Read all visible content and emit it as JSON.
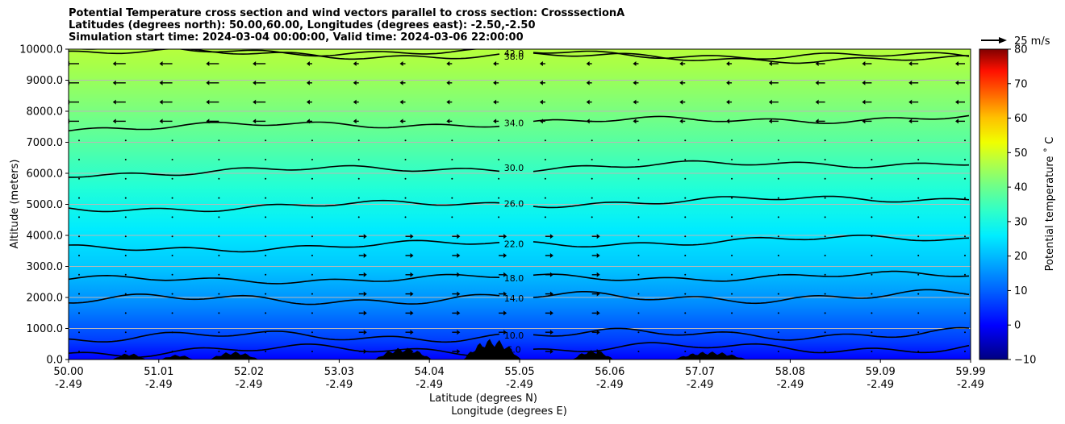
{
  "title_lines": [
    "Potential Temperature cross section and wind vectors parallel to cross section: CrosssectionA",
    "Latitudes (degrees north): 50.00,60.00, Longitudes (degrees east): -2.50,-2.50",
    "Simulation start time: 2024-03-04 00:00:00, Valid time: 2024-03-06 22:00:00"
  ],
  "chart_data": {
    "type": "contour",
    "title": "Potential Temperature cross section and wind vectors parallel to cross section: CrosssectionA",
    "ylabel": "Altitude (meters)",
    "xlabel_lines": [
      "Latitude (degrees N)",
      "Longitude (degrees E)"
    ],
    "ylim": [
      0,
      10000
    ],
    "y_ticks": [
      "0.0",
      "1000.0",
      "2000.0",
      "3000.0",
      "4000.0",
      "5000.0",
      "6000.0",
      "7000.0",
      "8000.0",
      "9000.0",
      "10000.0"
    ],
    "x_ticks": [
      {
        "lat": "50.00",
        "lon": "-2.49"
      },
      {
        "lat": "51.01",
        "lon": "-2.49"
      },
      {
        "lat": "52.02",
        "lon": "-2.49"
      },
      {
        "lat": "53.03",
        "lon": "-2.49"
      },
      {
        "lat": "54.04",
        "lon": "-2.49"
      },
      {
        "lat": "55.05",
        "lon": "-2.49"
      },
      {
        "lat": "56.06",
        "lon": "-2.49"
      },
      {
        "lat": "57.07",
        "lon": "-2.49"
      },
      {
        "lat": "58.08",
        "lon": "-2.49"
      },
      {
        "lat": "59.09",
        "lon": "-2.49"
      },
      {
        "lat": "59.99",
        "lon": "-2.49"
      }
    ],
    "contours": [
      {
        "level": 6.0,
        "label": "6.0",
        "altitude_m": 250
      },
      {
        "level": 10.0,
        "label": "10.0",
        "altitude_m": 700
      },
      {
        "level": 14.0,
        "label": "14.0",
        "altitude_m": 1900
      },
      {
        "level": 18.0,
        "label": "18.0",
        "altitude_m": 2550
      },
      {
        "level": 22.0,
        "label": "22.0",
        "altitude_m": 3550
      },
      {
        "level": 26.0,
        "label": "26.0",
        "altitude_m": 4850
      },
      {
        "level": 30.0,
        "label": "30.0",
        "altitude_m": 6000
      },
      {
        "level": 34.0,
        "label": "34.0",
        "altitude_m": 7450
      },
      {
        "level": 38.0,
        "label": "38.0",
        "altitude_m": 9900
      },
      {
        "level": 42.0,
        "label": "42.0",
        "altitude_m": 10000
      }
    ],
    "colorbar": {
      "label": "Potential temperature ˚ C",
      "range": [
        -10,
        80
      ],
      "ticks": [
        "80",
        "70",
        "60",
        "50",
        "40",
        "30",
        "20",
        "10",
        "0",
        "−10"
      ]
    },
    "wind_reference": {
      "label": "25 m/s",
      "speed_ms": 25
    }
  }
}
